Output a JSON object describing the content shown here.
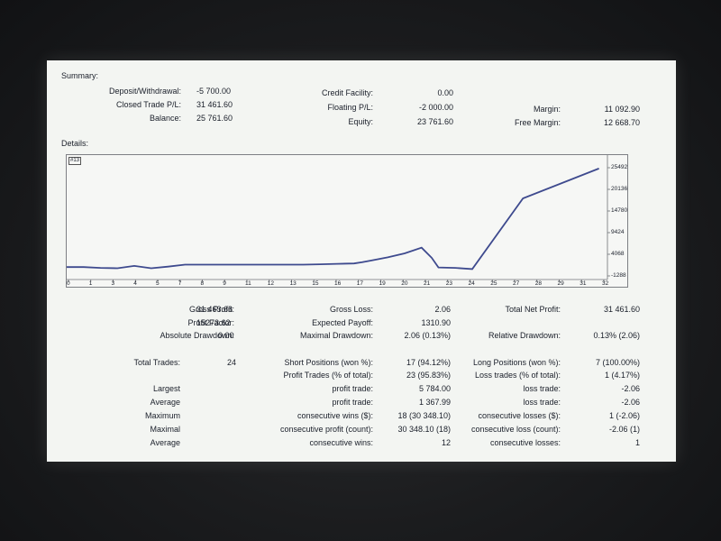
{
  "summary": {
    "title": "Summary:",
    "col1": [
      {
        "label": "Deposit/Withdrawal:",
        "value": "-5 700.00"
      },
      {
        "label": "Closed Trade P/L:",
        "value": "31 461.60"
      },
      {
        "label": "Balance:",
        "value": "25 761.60"
      }
    ],
    "col2": [
      {
        "label": "Credit Facility:",
        "value": "0.00"
      },
      {
        "label": "Floating P/L:",
        "value": "-2 000.00"
      },
      {
        "label": "Equity:",
        "value": "23 761.60"
      }
    ],
    "col3": [
      {
        "label": "Margin:",
        "value": "11 092.90"
      },
      {
        "label": "Free Margin:",
        "value": "12 668.70"
      }
    ]
  },
  "details": {
    "title": "Details:"
  },
  "chart_data": {
    "type": "line",
    "badge": "#13",
    "x_ticks": [
      "0",
      "1",
      "3",
      "4",
      "5",
      "7",
      "8",
      "9",
      "11",
      "12",
      "13",
      "15",
      "16",
      "17",
      "19",
      "20",
      "21",
      "23",
      "24",
      "25",
      "27",
      "28",
      "29",
      "31",
      "32"
    ],
    "y_ticks": [
      "25492",
      "20136",
      "14780",
      "9424",
      "4068",
      "-1288"
    ],
    "ylim": [
      -1288,
      25492
    ],
    "xlim": [
      0,
      32
    ],
    "line_color": "#3e4a8e",
    "x": [
      0,
      1,
      2,
      3,
      4,
      5,
      6,
      7,
      8,
      9,
      10,
      11,
      12,
      13,
      14,
      15,
      16,
      17,
      17.5,
      18,
      19,
      20,
      21,
      21.6,
      22,
      23,
      24,
      27,
      31.5
    ],
    "y": [
      900,
      900,
      700,
      600,
      1200,
      600,
      1000,
      1500,
      1500,
      1500,
      1500,
      1500,
      1500,
      1500,
      1500,
      1600,
      1700,
      1800,
      2100,
      2500,
      3300,
      4300,
      5700,
      3200,
      800,
      700,
      400,
      17900,
      25300
    ]
  },
  "stats": {
    "row_a": {
      "gross_profit": {
        "label": "Gross Profit:",
        "value": "31 463.66"
      },
      "gross_loss": {
        "label": "Gross Loss:",
        "value": "2.06"
      },
      "total_net_profit": {
        "label": "Total Net Profit:",
        "value": "31 461.60"
      }
    },
    "row_b": {
      "profit_factor": {
        "label": "Profit Factor:",
        "value": "15273.62"
      },
      "expected_payoff": {
        "label": "Expected Payoff:",
        "value": "1310.90"
      }
    },
    "row_c": {
      "absolute_drawdown": {
        "label": "Absolute Drawdown:",
        "value": "0.00"
      },
      "maximal_drawdown": {
        "label": "Maximal Drawdown:",
        "value": "2.06 (0.13%)"
      },
      "relative_drawdown": {
        "label": "Relative Drawdown:",
        "value": "0.13% (2.06)"
      }
    },
    "total_trades": {
      "label": "Total Trades:",
      "value": "24"
    },
    "short_positions": {
      "label": "Short Positions (won %):",
      "value": "17 (94.12%)"
    },
    "long_positions": {
      "label": "Long Positions (won %):",
      "value": "7 (100.00%)"
    },
    "profit_trades": {
      "label": "Profit Trades (% of total):",
      "value": "23 (95.83%)"
    },
    "loss_trades": {
      "label": "Loss trades (% of total):",
      "value": "1 (4.17%)"
    },
    "rows": [
      {
        "left": "Largest",
        "mid_label": "profit trade:",
        "mid_value": "5 784.00",
        "right_label": "loss trade:",
        "right_value": "-2.06"
      },
      {
        "left": "Average",
        "mid_label": "profit trade:",
        "mid_value": "1 367.99",
        "right_label": "loss trade:",
        "right_value": "-2.06"
      },
      {
        "left": "Maximum",
        "mid_label": "consecutive wins ($):",
        "mid_value": "18 (30 348.10)",
        "right_label": "consecutive losses ($):",
        "right_value": "1 (-2.06)"
      },
      {
        "left": "Maximal",
        "mid_label": "consecutive profit (count):",
        "mid_value": "30 348.10 (18)",
        "right_label": "consecutive loss (count):",
        "right_value": "-2.06 (1)"
      },
      {
        "left": "Average",
        "mid_label": "consecutive wins:",
        "mid_value": "12",
        "right_label": "consecutive losses:",
        "right_value": "1"
      }
    ]
  }
}
